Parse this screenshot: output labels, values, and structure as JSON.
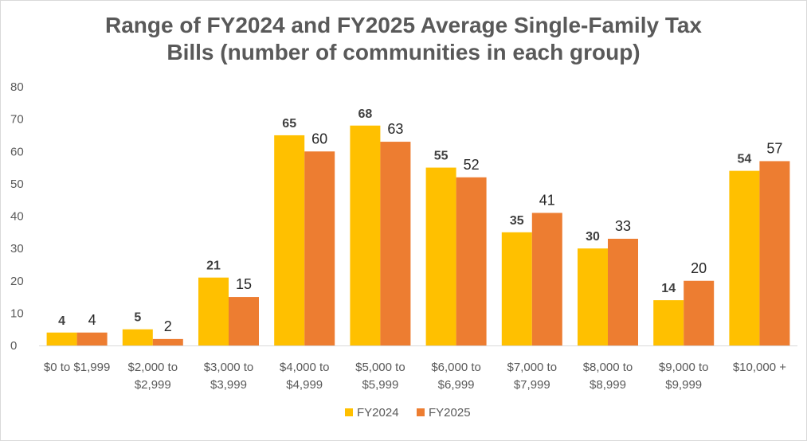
{
  "chart_data": {
    "type": "bar",
    "title_lines": [
      "Range of FY2024 and FY2025 Average Single-Family Tax",
      "Bills (number of communities in each group)"
    ],
    "categories": [
      [
        "$0 to $1,999"
      ],
      [
        "$2,000 to",
        "$2,999"
      ],
      [
        "$3,000 to",
        "$3,999"
      ],
      [
        "$4,000 to",
        "$4,999"
      ],
      [
        "$5,000 to",
        "$5,999"
      ],
      [
        "$6,000 to",
        "$6,999"
      ],
      [
        "$7,000 to",
        "$7,999"
      ],
      [
        "$8,000 to",
        "$8,999"
      ],
      [
        "$9,000 to",
        "$9,999"
      ],
      [
        "$10,000 +"
      ]
    ],
    "series": [
      {
        "name": "FY2024",
        "color": "#ffc000",
        "values": [
          4,
          5,
          21,
          65,
          68,
          55,
          35,
          30,
          14,
          54
        ]
      },
      {
        "name": "FY2025",
        "color": "#ed7d31",
        "values": [
          4,
          2,
          15,
          60,
          63,
          52,
          41,
          33,
          20,
          57
        ]
      }
    ],
    "ylim": [
      0,
      80
    ],
    "yticks": [
      0,
      10,
      20,
      30,
      40,
      50,
      60,
      70,
      80
    ],
    "grid": false,
    "legend": "bottom-center",
    "data_labels": true
  }
}
